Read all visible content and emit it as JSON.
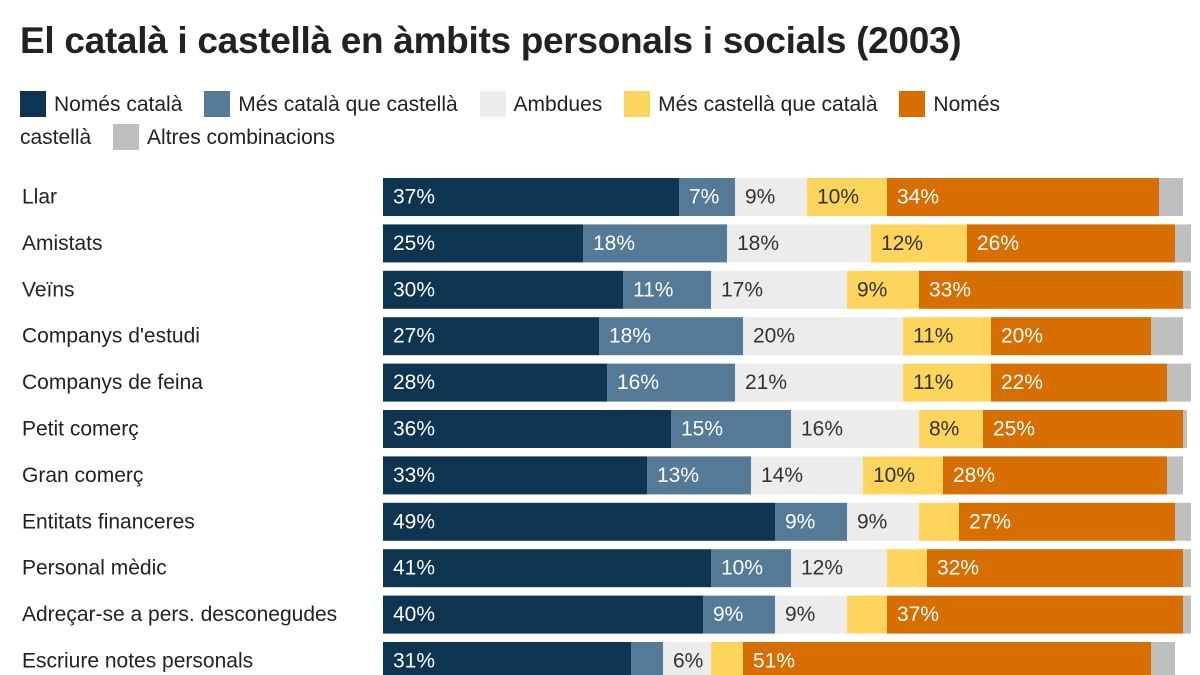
{
  "chart_data": {
    "type": "stacked-bar-horizontal",
    "title": "El català i castellà en àmbits personals i socials (2003)",
    "categories": [
      "Llar",
      "Amistats",
      "Veïns",
      "Companys d'estudi",
      "Companys de feina",
      "Petit comerç",
      "Gran comerç",
      "Entitats financeres",
      "Personal mèdic",
      "Adreçar-se a pers. desconegudes",
      "Escriure notes personals"
    ],
    "series": [
      {
        "name": "Només català",
        "color": "#0d3451",
        "values": [
          37,
          25,
          30,
          27,
          28,
          36,
          33,
          49,
          41,
          40,
          31
        ],
        "value_labels": [
          "37%",
          "25%",
          "30%",
          "27%",
          "28%",
          "36%",
          "33%",
          "49%",
          "41%",
          "40%",
          "31%"
        ]
      },
      {
        "name": "Més català que castellà",
        "color": "#557a98",
        "values": [
          7,
          18,
          11,
          18,
          16,
          15,
          13,
          9,
          10,
          9,
          4
        ],
        "value_labels": [
          "7%",
          "18%",
          "11%",
          "18%",
          "16%",
          "15%",
          "13%",
          "9%",
          "10%",
          "9%",
          null
        ]
      },
      {
        "name": "Ambdues",
        "color": "#ececec",
        "values": [
          9,
          18,
          17,
          20,
          21,
          16,
          14,
          9,
          12,
          9,
          6
        ],
        "value_labels": [
          "9%",
          "18%",
          "17%",
          "20%",
          "21%",
          "16%",
          "14%",
          "9%",
          "12%",
          "9%",
          "6%"
        ]
      },
      {
        "name": "Més castellà que català",
        "color": "#fdd55c",
        "values": [
          10,
          12,
          9,
          11,
          11,
          8,
          10,
          5,
          5,
          5,
          4
        ],
        "value_labels": [
          "10%",
          "12%",
          "9%",
          "11%",
          "11%",
          "8%",
          "10%",
          null,
          null,
          null,
          null
        ]
      },
      {
        "name": "Només castellà",
        "color": "#d66f00",
        "values": [
          34,
          26,
          33,
          20,
          22,
          25,
          28,
          27,
          32,
          37,
          51
        ],
        "value_labels": [
          "34%",
          "26%",
          "33%",
          "20%",
          "22%",
          "25%",
          "28%",
          "27%",
          "32%",
          "37%",
          "51%"
        ]
      },
      {
        "name": "Altres combinacions",
        "color": "#bfbfbf",
        "values": [
          3,
          2,
          1,
          4,
          3,
          0.5,
          2,
          2,
          1,
          1,
          3
        ]
      }
    ]
  }
}
